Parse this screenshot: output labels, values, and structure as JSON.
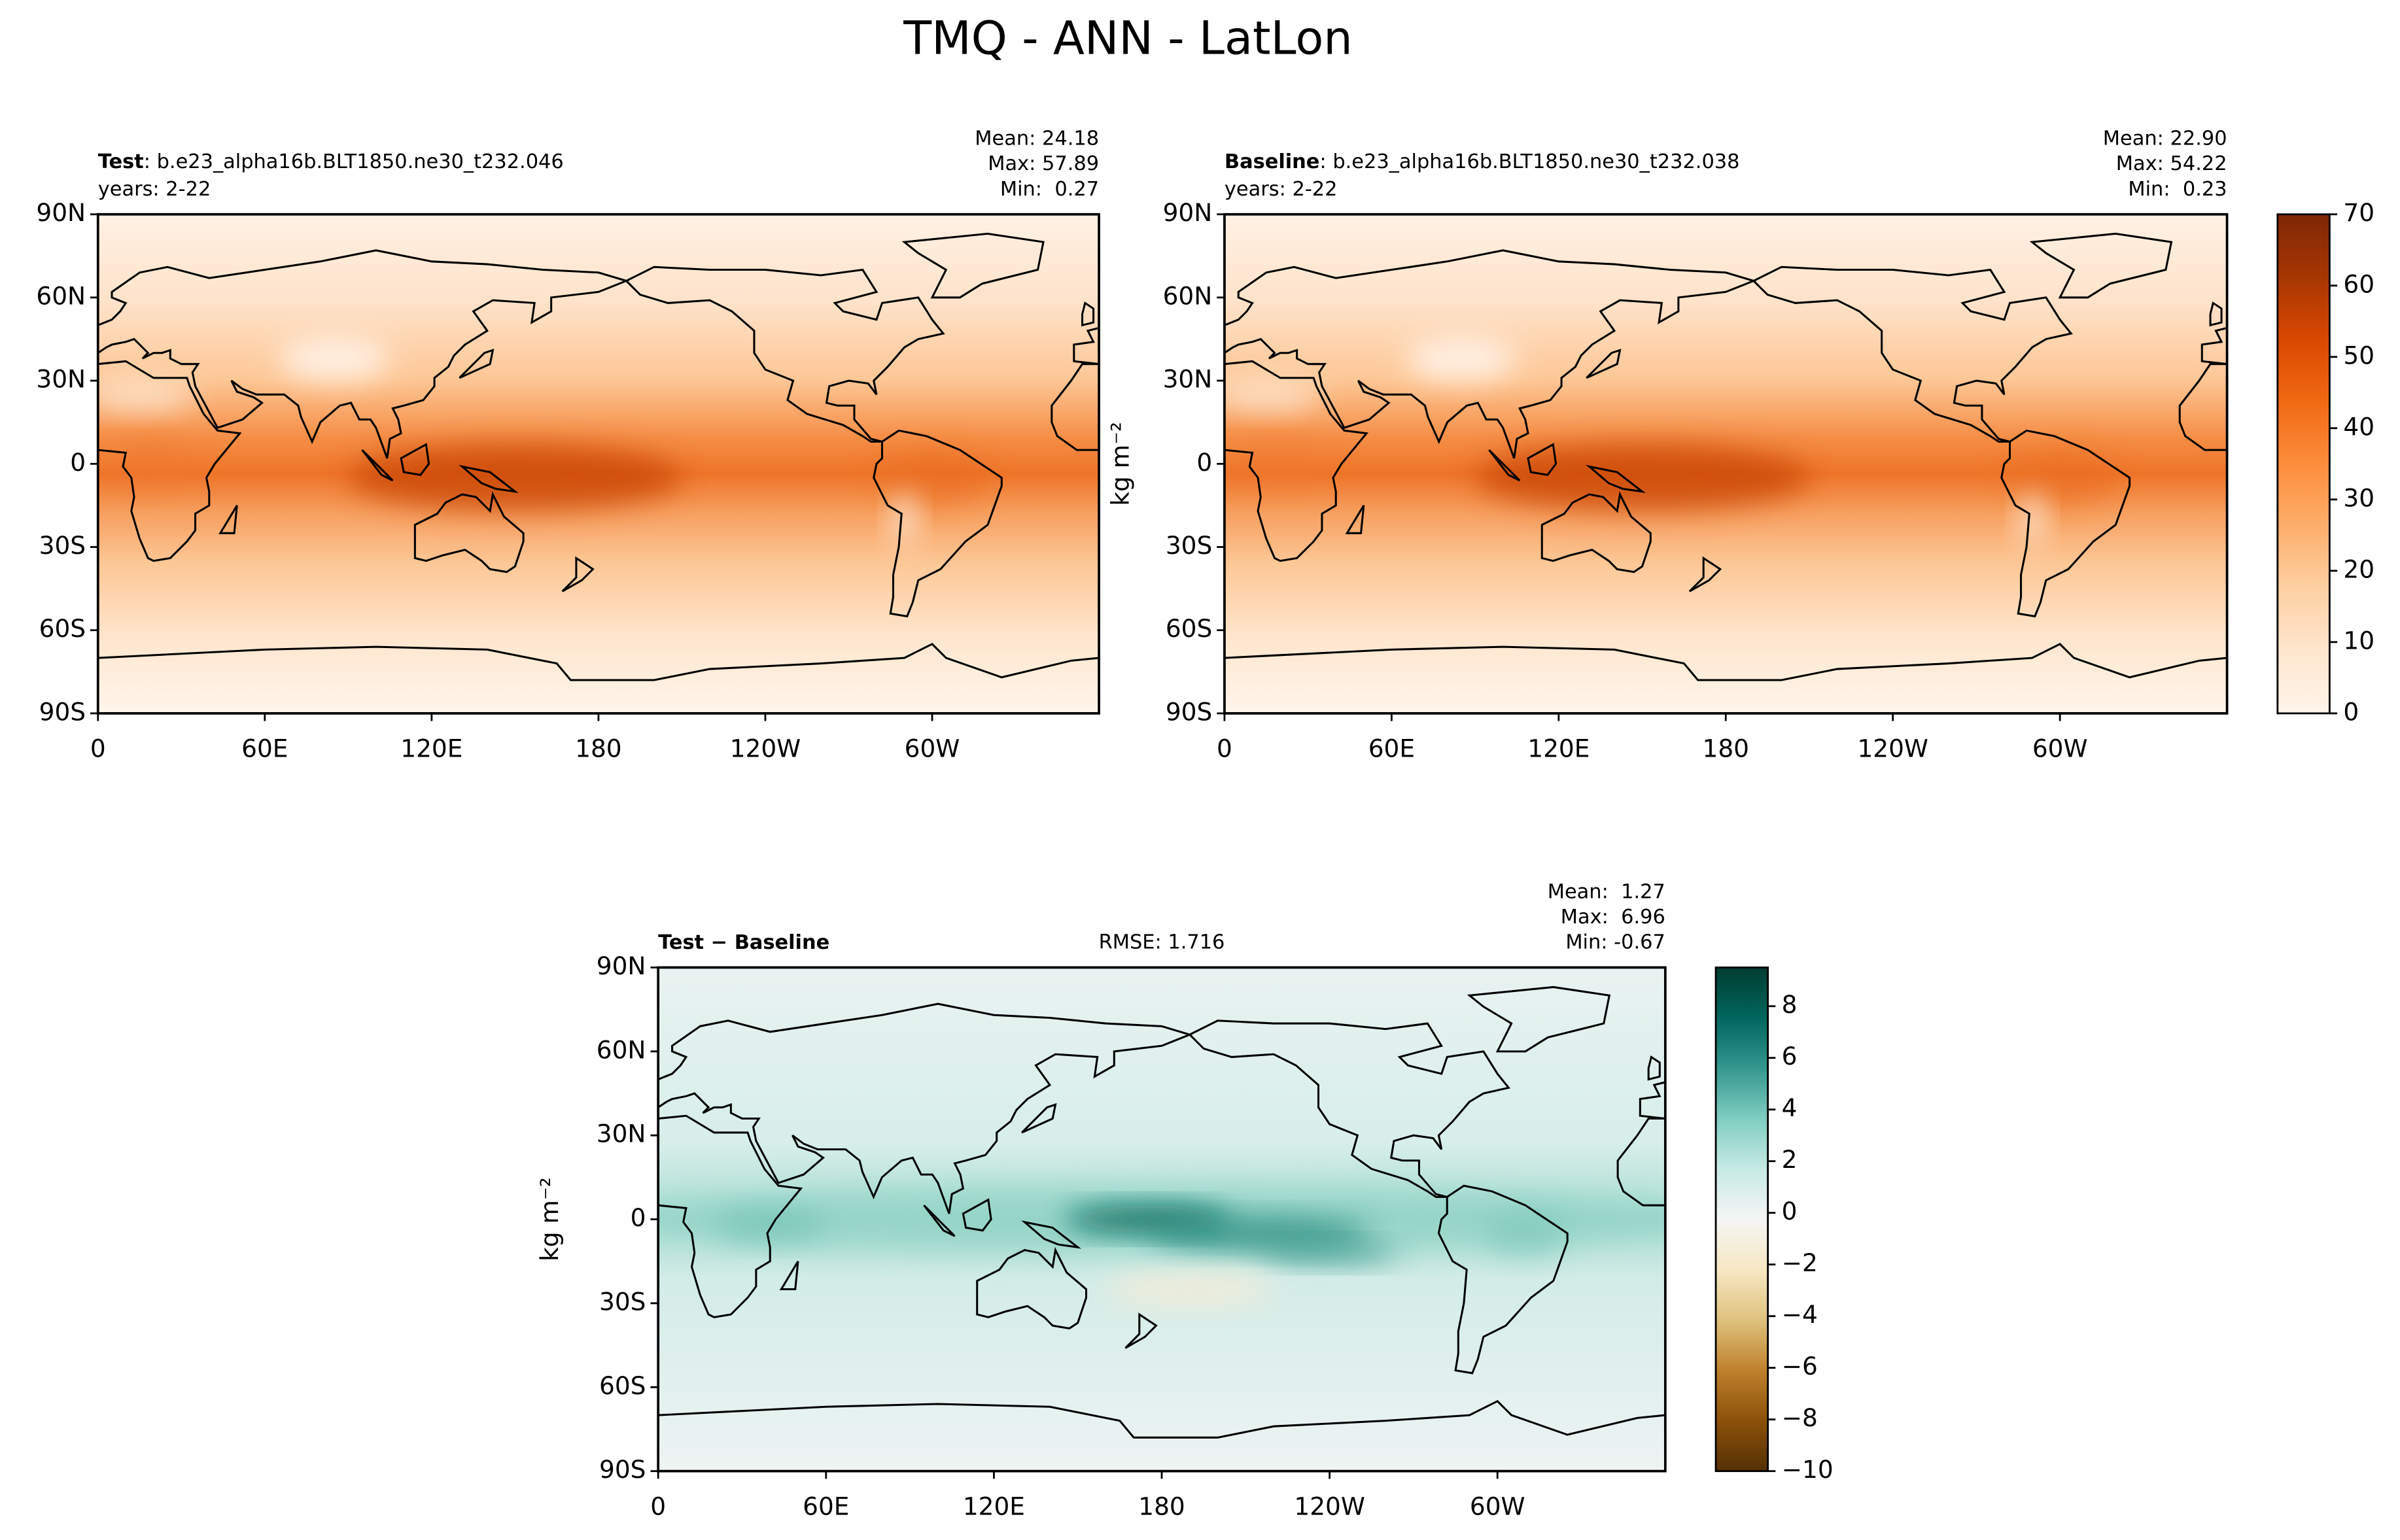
{
  "title": "TMQ - ANN - LatLon",
  "panels": [
    {
      "name": "Test",
      "case": ": b.e23_alpha16b.BLT1850.ne30_t232.046",
      "years": "years: 2-22",
      "stats": [
        "Mean: 24.18",
        "Max: 57.89",
        "Min:  0.27"
      ]
    },
    {
      "name": "Baseline",
      "case": ": b.e23_alpha16b.BLT1850.ne30_t232.038",
      "years": "years: 2-22",
      "stats": [
        "Mean: 22.90",
        "Max: 54.22",
        "Min:  0.23"
      ],
      "ylabel": "kg m⁻²"
    },
    {
      "name": "Test − Baseline",
      "rmse": "RMSE: 1.716",
      "stats": [
        "Mean:  1.27",
        "Max:  6.96",
        "Min: -0.67"
      ],
      "ylabel": "kg m⁻²"
    }
  ],
  "xlim": [
    0,
    360
  ],
  "ylim": [
    -90,
    90
  ],
  "xticks": [
    0,
    {
      "value": 60,
      "label": "60E"
    },
    {
      "value": 120,
      "label": "120E"
    },
    180,
    {
      "value": 240,
      "label": "120W"
    },
    {
      "value": 300,
      "label": "60W"
    }
  ],
  "yticks": [
    {
      "value": 90,
      "label": "90N"
    },
    {
      "value": 60,
      "label": "60N"
    },
    {
      "value": 30,
      "label": "30N"
    },
    0,
    {
      "value": -30,
      "label": "30S"
    },
    {
      "value": -60,
      "label": "60S"
    },
    {
      "value": -90,
      "label": "90S"
    }
  ],
  "colorbars": [
    {
      "lim": [
        0,
        70
      ],
      "ticks": [
        0,
        10,
        20,
        30,
        40,
        50,
        60,
        70
      ],
      "colors": [
        "#fff5eb",
        "#fee6ce",
        "#fdd0a2",
        "#fdae6b",
        "#fd8d3c",
        "#f16913",
        "#d94801",
        "#a63603",
        "#7f2704"
      ]
    },
    {
      "lim": [
        -10,
        9.5
      ],
      "ticks": [
        {
          "value": -10,
          "label": "−10"
        },
        {
          "value": -8,
          "label": "−8"
        },
        {
          "value": -6,
          "label": "−6"
        },
        {
          "value": -4,
          "label": "−4"
        },
        {
          "value": -2,
          "label": "−2"
        },
        0,
        2,
        4,
        6,
        8
      ],
      "colors": [
        "#543005",
        "#8c510a",
        "#bf812d",
        "#dfc27d",
        "#f6e8c3",
        "#f5f5f5",
        "#c7eae5",
        "#80cdc1",
        "#35978f",
        "#01665e",
        "#003c30"
      ]
    }
  ]
}
